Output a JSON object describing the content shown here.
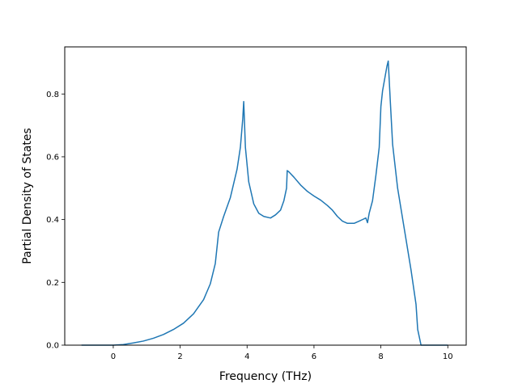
{
  "chart_data": {
    "type": "line",
    "title": "",
    "xlabel": "Frequency (THz)",
    "ylabel": "Partial Density of States",
    "xlim": [
      -1.45,
      10.55
    ],
    "ylim": [
      0.0,
      0.95
    ],
    "xticks": [
      0,
      2,
      4,
      6,
      8,
      10
    ],
    "yticks": [
      0.0,
      0.2,
      0.4,
      0.6,
      0.8
    ],
    "xtick_labels": [
      "0",
      "2",
      "4",
      "6",
      "8",
      "10"
    ],
    "ytick_labels": [
      "0.0",
      "0.2",
      "0.4",
      "0.6",
      "0.8"
    ],
    "grid": false,
    "line_color": "#1f77b4",
    "series": [
      {
        "x": [
          -0.95,
          -0.5,
          0.0,
          0.3,
          0.6,
          0.9,
          1.2,
          1.5,
          1.8,
          2.1,
          2.4,
          2.7,
          2.9,
          3.05,
          3.15,
          3.3,
          3.5,
          3.7,
          3.8,
          3.87,
          3.9,
          3.95,
          4.05,
          4.2,
          4.35,
          4.5,
          4.7,
          4.85,
          5.0,
          5.1,
          5.18,
          5.2,
          5.25,
          5.4,
          5.6,
          5.8,
          6.0,
          6.2,
          6.4,
          6.55,
          6.7,
          6.85,
          7.0,
          7.2,
          7.35,
          7.45,
          7.55,
          7.6,
          7.65,
          7.75,
          7.85,
          7.95,
          8.0,
          8.05,
          8.1,
          8.18,
          8.22,
          8.28,
          8.35,
          8.5,
          8.7,
          8.9,
          9.05,
          9.1,
          9.2,
          9.5,
          10.0
        ],
        "y": [
          0.0,
          0.0,
          0.0,
          0.002,
          0.007,
          0.013,
          0.022,
          0.034,
          0.05,
          0.07,
          0.1,
          0.145,
          0.195,
          0.26,
          0.36,
          0.41,
          0.47,
          0.56,
          0.63,
          0.72,
          0.776,
          0.63,
          0.52,
          0.45,
          0.42,
          0.41,
          0.405,
          0.415,
          0.43,
          0.46,
          0.5,
          0.556,
          0.552,
          0.535,
          0.51,
          0.49,
          0.475,
          0.462,
          0.445,
          0.43,
          0.41,
          0.395,
          0.388,
          0.388,
          0.395,
          0.4,
          0.405,
          0.39,
          0.42,
          0.46,
          0.54,
          0.63,
          0.76,
          0.81,
          0.84,
          0.888,
          0.905,
          0.78,
          0.64,
          0.5,
          0.37,
          0.24,
          0.13,
          0.05,
          0.0,
          0.0,
          0.0
        ]
      }
    ]
  }
}
